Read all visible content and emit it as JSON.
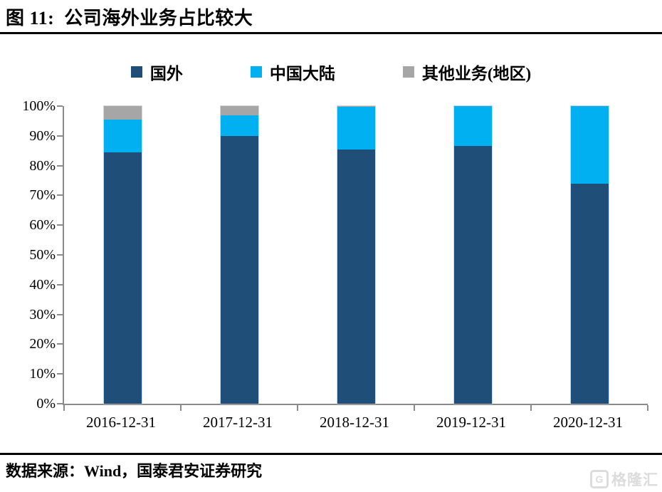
{
  "figure": {
    "title": "图 11:  公司海外业务占比较大",
    "source": "数据来源：Wind，国泰君安证券研究"
  },
  "watermark": {
    "icon_letter": "G",
    "text": "格隆汇"
  },
  "colors": {
    "series_dark_blue": "#1F4E79",
    "series_light_blue": "#00B0F0",
    "series_gray": "#A6A6A6",
    "axis": "#8a8a8a",
    "rule": "#000000",
    "watermark": "#dcdcdc"
  },
  "chart_data": {
    "type": "bar",
    "stacked": true,
    "title": "公司海外业务占比较大",
    "xlabel": "",
    "ylabel": "",
    "categories": [
      "2016-12-31",
      "2017-12-31",
      "2018-12-31",
      "2019-12-31",
      "2020-12-31"
    ],
    "series": [
      {
        "name": "国外",
        "color": "#1F4E79",
        "values": [
          84.5,
          90.0,
          85.3,
          86.5,
          74.0
        ]
      },
      {
        "name": "中国大陆",
        "color": "#00B0F0",
        "values": [
          11.0,
          7.0,
          14.4,
          13.5,
          26.0
        ]
      },
      {
        "name": "其他业务(地区)",
        "color": "#A6A6A6",
        "values": [
          4.5,
          3.0,
          0.3,
          0.0,
          0.0
        ]
      }
    ],
    "ylim": [
      0,
      100
    ],
    "ytick_step": 10,
    "ytick_labels": [
      "0%",
      "10%",
      "20%",
      "30%",
      "40%",
      "50%",
      "60%",
      "70%",
      "80%",
      "90%",
      "100%"
    ],
    "legend_position": "top",
    "grid": false
  }
}
